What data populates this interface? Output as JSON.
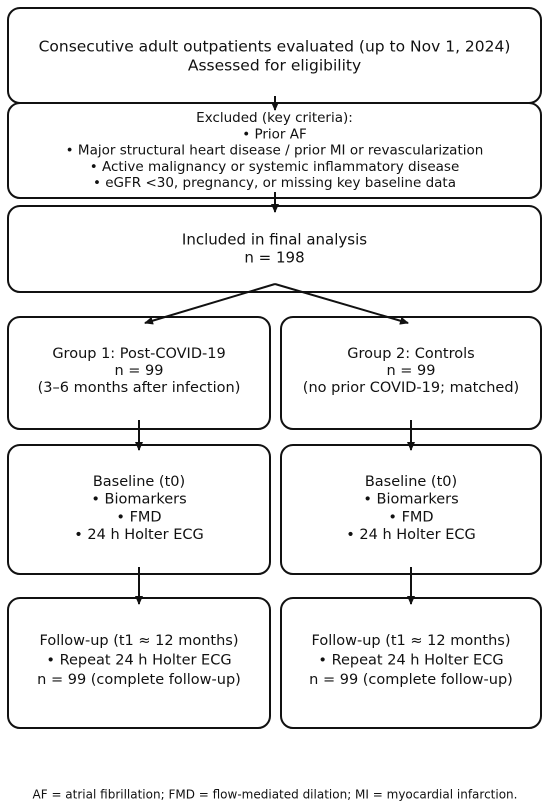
{
  "nodes": [
    {
      "lines": [
        "Consecutive adult outpatients evaluated (up to Nov 1, 2024)",
        "Assessed for eligibility"
      ]
    },
    {
      "lines": [
        "Excluded (key criteria):",
        "• Prior AF",
        "• Major structural heart disease / prior MI or revascularization",
        "• Active malignancy or systemic inflammatory disease",
        "• eGFR <30, pregnancy, or missing key baseline data"
      ]
    },
    {
      "lines": [
        "Included in final analysis",
        "n = 198"
      ]
    },
    {
      "lines": [
        "Group 1: Post-COVID-19",
        "n = 99",
        "(3–6 months after infection)"
      ]
    },
    {
      "lines": [
        "Group 2: Controls",
        "n = 99",
        "(no prior COVID-19; matched)"
      ]
    },
    {
      "lines": [
        "Baseline (t0)",
        "• Biomarkers",
        "• FMD",
        "• 24 h Holter ECG"
      ]
    },
    {
      "lines": [
        "Baseline (t0)",
        "• Biomarkers",
        "• FMD",
        "• 24 h Holter ECG"
      ]
    },
    {
      "lines": [
        "Follow-up (t1 ≈ 12 months)",
        "• Repeat 24 h Holter ECG",
        "n = 99 (complete follow-up)"
      ]
    },
    {
      "lines": [
        "Follow-up (t1 ≈ 12 months)",
        "• Repeat 24 h Holter ECG",
        "n = 99 (complete follow-up)"
      ]
    }
  ],
  "footnote": "AF = atrial fibrillation; FMD = flow-mediated dilation; MI = myocardial infarction."
}
